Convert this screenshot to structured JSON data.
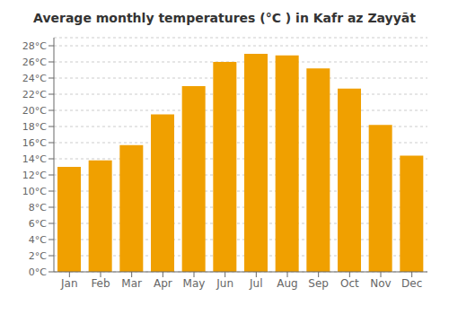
{
  "chart_data": {
    "type": "bar",
    "title": "Average monthly temperatures (°C ) in Kafr az Zayyāt",
    "categories": [
      "Jan",
      "Feb",
      "Mar",
      "Apr",
      "May",
      "Jun",
      "Jul",
      "Aug",
      "Sep",
      "Oct",
      "Nov",
      "Dec"
    ],
    "values": [
      13.0,
      13.8,
      15.7,
      19.5,
      23.0,
      26.0,
      27.0,
      26.8,
      25.2,
      22.7,
      18.2,
      14.4
    ],
    "color": "#F0A000",
    "ylim": [
      0,
      29
    ],
    "yticks": [
      {
        "value": 0,
        "label": "0°C"
      },
      {
        "value": 2,
        "label": "2°C"
      },
      {
        "value": 4,
        "label": "4°C"
      },
      {
        "value": 6,
        "label": "6°C"
      },
      {
        "value": 8,
        "label": "8°C"
      },
      {
        "value": 10,
        "label": "10°C"
      },
      {
        "value": 12,
        "label": "12°C"
      },
      {
        "value": 14,
        "label": "14°C"
      },
      {
        "value": 16,
        "label": "16°C"
      },
      {
        "value": 18,
        "label": "18°C"
      },
      {
        "value": 20,
        "label": "20°C"
      },
      {
        "value": 22,
        "label": "22°C"
      },
      {
        "value": 24,
        "label": "24°C"
      },
      {
        "value": 26,
        "label": "26°C"
      },
      {
        "value": 28,
        "label": "28°C"
      }
    ],
    "grid": true
  }
}
